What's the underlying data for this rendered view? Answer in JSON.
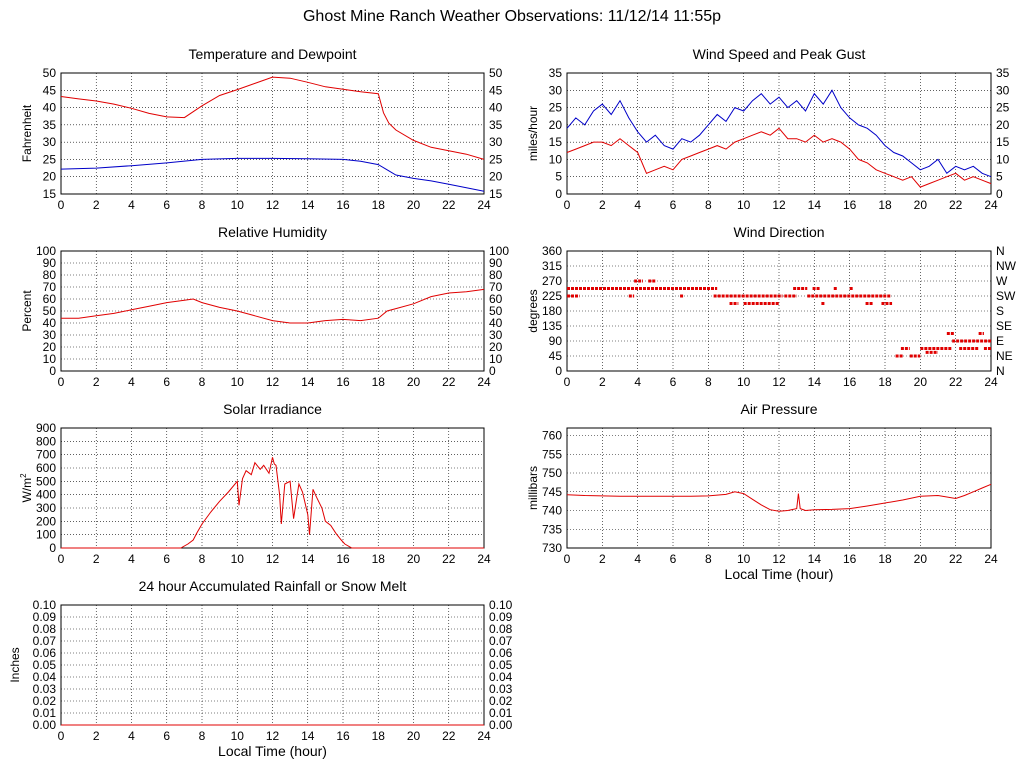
{
  "page": {
    "title": "Ghost Mine Ranch Weather Observations: 11/12/14 11:55p"
  },
  "colors": {
    "red": "#e00000",
    "blue": "#0000c8",
    "grid": "#000000",
    "axis": "#000000"
  },
  "chart_data": [
    {
      "id": "temp",
      "type": "line",
      "title": "Temperature and Dewpoint",
      "xlabel": "",
      "ylabel": "Fahrenheit",
      "xlim": [
        0,
        24
      ],
      "ylim": [
        15,
        50
      ],
      "xticks": [
        0,
        2,
        4,
        6,
        8,
        10,
        12,
        14,
        16,
        18,
        20,
        22,
        24
      ],
      "yticks": [
        15,
        20,
        25,
        30,
        35,
        40,
        45,
        50
      ],
      "right_ticks": [
        "15",
        "20",
        "25",
        "30",
        "35",
        "40",
        "45",
        "50"
      ],
      "grid": true,
      "series": [
        {
          "color": "red",
          "x": [
            0,
            1,
            2,
            3,
            4,
            5,
            6,
            7,
            8,
            9,
            10,
            11,
            12,
            13,
            14,
            15,
            16,
            17,
            18,
            18.3,
            18.6,
            19,
            20,
            21,
            22,
            23,
            24
          ],
          "y": [
            43.2,
            42.5,
            41.9,
            41.0,
            39.8,
            38.3,
            37.3,
            37.1,
            40.5,
            43.5,
            45.2,
            47.0,
            48.8,
            48.5,
            47.3,
            46.0,
            45.3,
            44.6,
            44.0,
            38.5,
            35.5,
            33.5,
            30.5,
            28.5,
            27.5,
            26.5,
            25.0
          ]
        },
        {
          "color": "blue",
          "x": [
            0,
            2,
            4,
            6,
            8,
            10,
            12,
            14,
            16,
            17,
            18,
            18.5,
            19,
            20,
            21,
            22,
            23,
            24
          ],
          "y": [
            22.2,
            22.5,
            23.2,
            24.0,
            25.0,
            25.3,
            25.3,
            25.2,
            25.0,
            24.5,
            23.5,
            22.0,
            20.5,
            19.5,
            18.8,
            17.8,
            16.8,
            15.8
          ]
        }
      ]
    },
    {
      "id": "wind",
      "type": "line",
      "title": "Wind Speed and Peak Gust",
      "xlabel": "",
      "ylabel": "miles/hour",
      "xlim": [
        0,
        24
      ],
      "ylim": [
        0,
        35
      ],
      "xticks": [
        0,
        2,
        4,
        6,
        8,
        10,
        12,
        14,
        16,
        18,
        20,
        22,
        24
      ],
      "yticks": [
        0,
        5,
        10,
        15,
        20,
        25,
        30,
        35
      ],
      "right_ticks": [
        "0",
        "5",
        "10",
        "15",
        "20",
        "25",
        "30",
        "35"
      ],
      "grid": true,
      "series": [
        {
          "color": "blue",
          "x": [
            0,
            0.5,
            1,
            1.5,
            2,
            2.5,
            3,
            3.5,
            4,
            4.5,
            5,
            5.5,
            6,
            6.5,
            7,
            7.5,
            8,
            8.5,
            9,
            9.5,
            10,
            10.5,
            11,
            11.5,
            12,
            12.5,
            13,
            13.5,
            14,
            14.5,
            15,
            15.5,
            16,
            16.5,
            17,
            17.5,
            18,
            18.5,
            19,
            19.5,
            20,
            20.5,
            21,
            21.5,
            22,
            22.5,
            23,
            23.5,
            24
          ],
          "y": [
            19,
            22,
            20,
            24,
            26,
            23,
            27,
            22,
            18,
            15,
            17,
            14,
            13,
            16,
            15,
            17,
            20,
            23,
            21,
            25,
            24,
            27,
            29,
            26,
            28,
            25,
            27,
            24,
            29,
            26,
            30,
            25,
            22,
            20,
            19,
            17,
            14,
            12,
            11,
            9,
            7,
            8,
            10,
            6,
            8,
            7,
            8,
            6,
            5
          ]
        },
        {
          "color": "red",
          "x": [
            0,
            0.5,
            1,
            1.5,
            2,
            2.5,
            3,
            3.5,
            4,
            4.5,
            5,
            5.5,
            6,
            6.5,
            7,
            7.5,
            8,
            8.5,
            9,
            9.5,
            10,
            10.5,
            11,
            11.5,
            12,
            12.5,
            13,
            13.5,
            14,
            14.5,
            15,
            15.5,
            16,
            16.5,
            17,
            17.5,
            18,
            18.5,
            19,
            19.5,
            20,
            20.5,
            21,
            21.5,
            22,
            22.5,
            23,
            23.5,
            24
          ],
          "y": [
            12,
            13,
            14,
            15,
            15,
            14,
            16,
            14,
            12,
            6,
            7,
            8,
            7,
            10,
            11,
            12,
            13,
            14,
            13,
            15,
            16,
            17,
            18,
            17,
            19,
            16,
            16,
            15,
            17,
            15,
            16,
            15,
            13,
            10,
            9,
            7,
            6,
            5,
            4,
            5,
            2,
            3,
            4,
            5,
            6,
            4,
            5,
            4,
            3
          ]
        }
      ]
    },
    {
      "id": "rh",
      "type": "line",
      "title": "Relative Humidity",
      "xlabel": "",
      "ylabel": "Percent",
      "xlim": [
        0,
        24
      ],
      "ylim": [
        0,
        100
      ],
      "xticks": [
        0,
        2,
        4,
        6,
        8,
        10,
        12,
        14,
        16,
        18,
        20,
        22,
        24
      ],
      "yticks": [
        0,
        10,
        20,
        30,
        40,
        50,
        60,
        70,
        80,
        90,
        100
      ],
      "right_ticks": [
        "0",
        "10",
        "20",
        "30",
        "40",
        "50",
        "60",
        "70",
        "80",
        "90",
        "100"
      ],
      "grid": true,
      "series": [
        {
          "color": "red",
          "x": [
            0,
            1,
            2,
            3,
            4,
            5,
            6,
            7,
            7.5,
            8,
            9,
            10,
            11,
            12,
            13,
            14,
            15,
            16,
            17,
            18,
            18.5,
            19,
            20,
            21,
            22,
            23,
            24
          ],
          "y": [
            44,
            44,
            46,
            48,
            51,
            54,
            57,
            59,
            60,
            57,
            53,
            50,
            46,
            42,
            40,
            40,
            42,
            43,
            42,
            44,
            50,
            52,
            56,
            62,
            65,
            66,
            68
          ]
        }
      ]
    },
    {
      "id": "wdir",
      "type": "scatter",
      "title": "Wind Direction",
      "xlabel": "",
      "ylabel": "degrees",
      "xlim": [
        0,
        24
      ],
      "ylim": [
        0,
        360
      ],
      "xticks": [
        0,
        2,
        4,
        6,
        8,
        10,
        12,
        14,
        16,
        18,
        20,
        22,
        24
      ],
      "yticks": [
        0,
        45,
        90,
        135,
        180,
        225,
        270,
        315,
        360
      ],
      "right_ticks": [
        "N",
        "NE",
        "E",
        "SE",
        "S",
        "SW",
        "W",
        "NW",
        "N"
      ],
      "grid": true,
      "segments": [
        {
          "x0": 0,
          "x1": 8.5,
          "y": 247.5
        },
        {
          "x0": 0,
          "x1": 0.7,
          "y": 225
        },
        {
          "x0": 3.5,
          "x1": 3.8,
          "y": 225
        },
        {
          "x0": 3.8,
          "x1": 4.3,
          "y": 270
        },
        {
          "x0": 4.6,
          "x1": 5.0,
          "y": 270
        },
        {
          "x0": 6.4,
          "x1": 6.6,
          "y": 225
        },
        {
          "x0": 8.3,
          "x1": 12.2,
          "y": 225
        },
        {
          "x0": 9.2,
          "x1": 9.7,
          "y": 202.5
        },
        {
          "x0": 10.0,
          "x1": 12.0,
          "y": 202.5
        },
        {
          "x0": 12.3,
          "x1": 13.0,
          "y": 225
        },
        {
          "x0": 12.8,
          "x1": 13.6,
          "y": 247.5
        },
        {
          "x0": 13.6,
          "x1": 18.3,
          "y": 225
        },
        {
          "x0": 13.9,
          "x1": 14.3,
          "y": 247.5
        },
        {
          "x0": 14.4,
          "x1": 14.6,
          "y": 202.5
        },
        {
          "x0": 15.1,
          "x1": 15.3,
          "y": 247.5
        },
        {
          "x0": 16.0,
          "x1": 16.2,
          "y": 247.5
        },
        {
          "x0": 16.9,
          "x1": 17.3,
          "y": 202.5
        },
        {
          "x0": 17.8,
          "x1": 18.4,
          "y": 202.5
        },
        {
          "x0": 18.6,
          "x1": 19.0,
          "y": 45
        },
        {
          "x0": 18.9,
          "x1": 19.4,
          "y": 67.5
        },
        {
          "x0": 19.4,
          "x1": 20.0,
          "y": 45
        },
        {
          "x0": 20.0,
          "x1": 21.8,
          "y": 67.5
        },
        {
          "x0": 20.3,
          "x1": 21.0,
          "y": 56
        },
        {
          "x0": 21.5,
          "x1": 21.9,
          "y": 112.5
        },
        {
          "x0": 21.8,
          "x1": 24.0,
          "y": 90
        },
        {
          "x0": 22.2,
          "x1": 23.3,
          "y": 67.5
        },
        {
          "x0": 23.3,
          "x1": 23.6,
          "y": 112.5
        },
        {
          "x0": 23.6,
          "x1": 24.0,
          "y": 67.5
        }
      ]
    },
    {
      "id": "solar",
      "type": "area",
      "title": "Solar Irradiance",
      "xlabel": "",
      "ylabel": "W/m2",
      "xlim": [
        0,
        24
      ],
      "ylim": [
        0,
        900
      ],
      "xticks": [
        0,
        2,
        4,
        6,
        8,
        10,
        12,
        14,
        16,
        18,
        20,
        22,
        24
      ],
      "yticks": [
        0,
        100,
        200,
        300,
        400,
        500,
        600,
        700,
        800,
        900
      ],
      "grid": true,
      "series": [
        {
          "color": "red",
          "x": [
            0,
            6.8,
            7.2,
            7.5,
            7.7,
            8.0,
            8.5,
            9.0,
            9.5,
            10.0,
            10.1,
            10.3,
            10.5,
            10.8,
            11.0,
            11.3,
            11.5,
            11.8,
            12.0,
            12.1,
            12.2,
            12.4,
            12.5,
            12.7,
            13.0,
            13.2,
            13.4,
            13.5,
            13.7,
            14.0,
            14.1,
            14.3,
            14.5,
            14.8,
            15.0,
            15.3,
            15.6,
            15.9,
            16.1,
            16.5,
            24
          ],
          "y": [
            0,
            0,
            30,
            60,
            110,
            180,
            270,
            350,
            420,
            500,
            320,
            520,
            580,
            550,
            640,
            590,
            620,
            560,
            680,
            630,
            620,
            400,
            180,
            480,
            500,
            220,
            400,
            480,
            420,
            250,
            100,
            440,
            380,
            300,
            200,
            170,
            110,
            60,
            30,
            0,
            0
          ]
        }
      ]
    },
    {
      "id": "pressure",
      "type": "line",
      "title": "Air Pressure",
      "xlabel": "Local Time (hour)",
      "ylabel": "millibars",
      "xlim": [
        0,
        24
      ],
      "ylim": [
        730,
        762
      ],
      "xticks": [
        0,
        2,
        4,
        6,
        8,
        10,
        12,
        14,
        16,
        18,
        20,
        22,
        24
      ],
      "yticks": [
        730,
        735,
        740,
        745,
        750,
        755,
        760
      ],
      "grid": true,
      "series": [
        {
          "color": "red",
          "x": [
            0,
            1,
            2,
            3,
            4,
            5,
            6,
            7,
            8,
            9,
            9.5,
            10,
            10.5,
            11,
            11.5,
            12,
            12.5,
            13,
            13.1,
            13.2,
            13.5,
            14,
            15,
            16,
            17,
            18,
            19,
            20,
            21,
            22,
            22.5,
            23,
            23.5,
            24
          ],
          "y": [
            744.2,
            744.0,
            743.9,
            743.8,
            743.8,
            743.8,
            743.8,
            743.8,
            743.9,
            744.3,
            745.0,
            744.5,
            743.0,
            741.5,
            740.2,
            739.8,
            740.0,
            740.5,
            744.5,
            740.5,
            740.0,
            740.2,
            740.3,
            740.5,
            741.2,
            742.0,
            742.8,
            743.8,
            744.0,
            743.2,
            744.0,
            745.0,
            746.0,
            747.0
          ]
        }
      ]
    },
    {
      "id": "rain",
      "type": "line",
      "title": "24 hour Accumulated Rainfall or Snow Melt",
      "xlabel": "Local Time (hour)",
      "ylabel": "Inches",
      "xlim": [
        0,
        24
      ],
      "ylim": [
        0,
        0.1
      ],
      "xticks": [
        0,
        2,
        4,
        6,
        8,
        10,
        12,
        14,
        16,
        18,
        20,
        22,
        24
      ],
      "yticks": [
        0,
        0.01,
        0.02,
        0.03,
        0.04,
        0.05,
        0.06,
        0.07,
        0.08,
        0.09,
        0.1
      ],
      "ytick_labels": [
        "0.00",
        "0.01",
        "0.02",
        "0.03",
        "0.04",
        "0.05",
        "0.06",
        "0.07",
        "0.08",
        "0.09",
        "0.10"
      ],
      "right_ticks": [
        "0.00",
        "0.01",
        "0.02",
        "0.03",
        "0.04",
        "0.05",
        "0.06",
        "0.07",
        "0.08",
        "0.09",
        "0.10"
      ],
      "grid": true,
      "series": [
        {
          "color": "red",
          "x": [
            0,
            24
          ],
          "y": [
            0,
            0
          ]
        }
      ]
    }
  ]
}
